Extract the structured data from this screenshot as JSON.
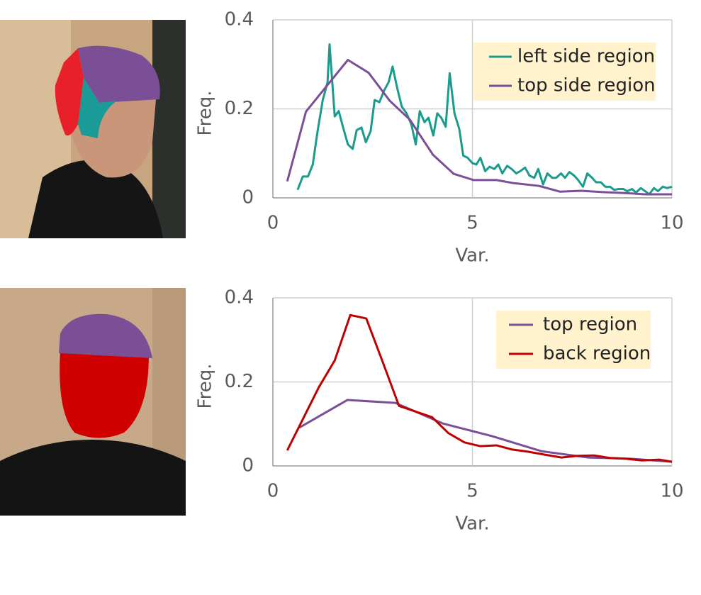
{
  "chart_data": [
    {
      "type": "line",
      "x_label": "Var.",
      "y_label": "Freq.",
      "xlim": [
        0,
        10
      ],
      "xticks": [
        0,
        5,
        10
      ],
      "ylim": [
        0,
        0.4
      ],
      "yticks": [
        0,
        0.2,
        0.4
      ],
      "grid": true,
      "legend": "upper right",
      "series": [
        {
          "name": "left side region",
          "color": "#1a9b8c",
          "x": [
            0.62,
            0.75,
            0.88,
            1.0,
            1.12,
            1.25,
            1.37,
            1.42,
            1.55,
            1.65,
            1.77,
            1.88,
            2.0,
            2.1,
            2.22,
            2.33,
            2.45,
            2.55,
            2.67,
            2.78,
            2.9,
            3.0,
            3.12,
            3.23,
            3.35,
            3.47,
            3.58,
            3.68,
            3.8,
            3.9,
            4.02,
            4.12,
            4.22,
            4.33,
            4.43,
            4.55,
            4.67,
            4.77,
            4.88,
            5.0,
            5.1,
            5.2,
            5.32,
            5.43,
            5.55,
            5.65,
            5.75,
            5.87,
            5.98,
            6.1,
            6.2,
            6.32,
            6.43,
            6.55,
            6.65,
            6.77,
            6.88,
            7.0,
            7.1,
            7.22,
            7.32,
            7.43,
            7.55,
            7.65,
            7.77,
            7.88,
            8.0,
            8.1,
            8.22,
            8.33,
            8.45,
            8.55,
            8.67,
            8.78,
            8.88,
            9.0,
            9.1,
            9.22,
            9.33,
            9.43,
            9.55,
            9.65,
            9.77,
            9.88,
            10
          ],
          "values": [
            0.018,
            0.048,
            0.048,
            0.075,
            0.15,
            0.22,
            0.26,
            0.345,
            0.183,
            0.195,
            0.155,
            0.12,
            0.11,
            0.152,
            0.158,
            0.125,
            0.15,
            0.22,
            0.215,
            0.24,
            0.26,
            0.295,
            0.245,
            0.205,
            0.19,
            0.165,
            0.12,
            0.195,
            0.17,
            0.18,
            0.14,
            0.19,
            0.18,
            0.16,
            0.28,
            0.19,
            0.155,
            0.095,
            0.09,
            0.078,
            0.075,
            0.09,
            0.06,
            0.07,
            0.065,
            0.075,
            0.055,
            0.072,
            0.065,
            0.055,
            0.06,
            0.068,
            0.05,
            0.045,
            0.065,
            0.03,
            0.055,
            0.045,
            0.045,
            0.055,
            0.045,
            0.058,
            0.05,
            0.04,
            0.025,
            0.055,
            0.045,
            0.035,
            0.035,
            0.025,
            0.025,
            0.018,
            0.02,
            0.02,
            0.015,
            0.02,
            0.012,
            0.022,
            0.015,
            0.008,
            0.022,
            0.015,
            0.025,
            0.022,
            0.025
          ]
        },
        {
          "name": "top side region",
          "color": "#7a4f96",
          "x": [
            0.36,
            0.83,
            1.88,
            2.4,
            2.93,
            3.43,
            4.01,
            4.53,
            5.03,
            5.6,
            6.04,
            6.66,
            7.19,
            7.73,
            8.26,
            8.79,
            9.32,
            10
          ],
          "values": [
            0.037,
            0.194,
            0.31,
            0.281,
            0.218,
            0.176,
            0.097,
            0.054,
            0.04,
            0.04,
            0.033,
            0.027,
            0.014,
            0.016,
            0.013,
            0.011,
            0.008,
            0.008
          ]
        }
      ]
    },
    {
      "type": "line",
      "x_label": "Var.",
      "y_label": "Freq.",
      "xlim": [
        0,
        10
      ],
      "xticks": [
        0,
        5,
        10
      ],
      "ylim": [
        0,
        0.4
      ],
      "yticks": [
        0,
        0.2,
        0.4
      ],
      "grid": true,
      "legend": "upper right",
      "series": [
        {
          "name": "top region",
          "color": "#7a4f96",
          "x": [
            0.66,
            1.87,
            3.07,
            4.26,
            5.49,
            6.73,
            7.9,
            8.97,
            10
          ],
          "values": [
            0.091,
            0.157,
            0.15,
            0.101,
            0.071,
            0.035,
            0.02,
            0.017,
            0.01
          ]
        },
        {
          "name": "back region",
          "color": "#c00000",
          "x": [
            0.36,
            1.15,
            1.55,
            1.94,
            2.34,
            2.75,
            3.16,
            3.99,
            4.4,
            4.8,
            5.2,
            5.6,
            6.0,
            6.39,
            6.8,
            7.23,
            7.64,
            8.05,
            8.44,
            8.85,
            9.25,
            9.68,
            10
          ],
          "values": [
            0.037,
            0.187,
            0.251,
            0.359,
            0.351,
            0.248,
            0.143,
            0.116,
            0.078,
            0.056,
            0.047,
            0.049,
            0.039,
            0.034,
            0.027,
            0.02,
            0.024,
            0.025,
            0.019,
            0.017,
            0.013,
            0.015,
            0.01
          ]
        }
      ]
    }
  ]
}
